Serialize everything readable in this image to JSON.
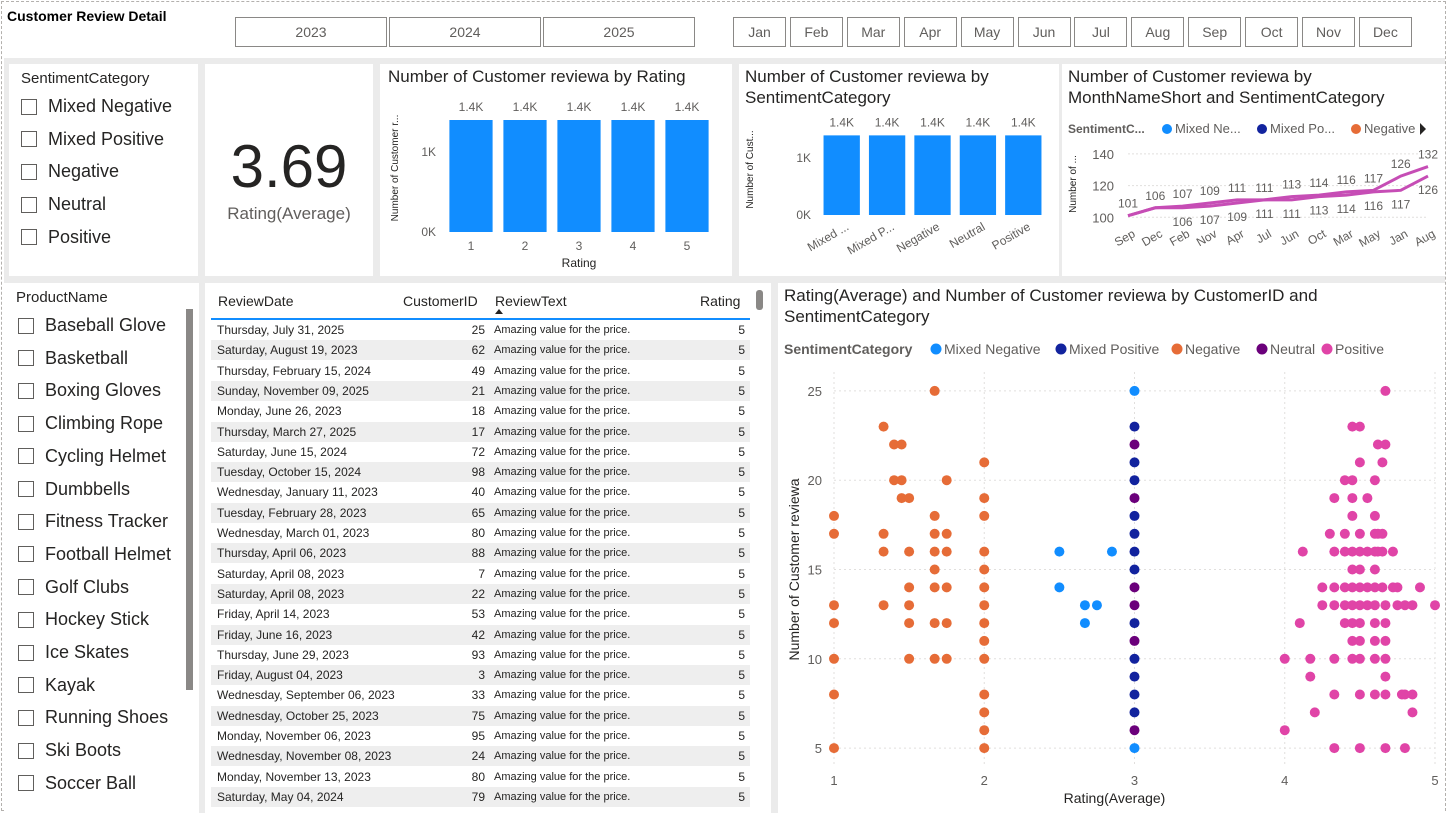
{
  "page_title": "Customer Review Detail",
  "years": [
    "2023",
    "2024",
    "2025"
  ],
  "months": [
    "Jan",
    "Feb",
    "Mar",
    "Apr",
    "May",
    "Jun",
    "Jul",
    "Aug",
    "Sep",
    "Oct",
    "Nov",
    "Dec"
  ],
  "sentiment_slicer": {
    "title": "SentimentCategory",
    "items": [
      "Mixed Negative",
      "Mixed Positive",
      "Negative",
      "Neutral",
      "Positive"
    ]
  },
  "product_slicer": {
    "title": "ProductName",
    "items": [
      "Baseball Glove",
      "Basketball",
      "Boxing Gloves",
      "Climbing Rope",
      "Cycling Helmet",
      "Dumbbells",
      "Fitness Tracker",
      "Football Helmet",
      "Golf Clubs",
      "Hockey Stick",
      "Ice Skates",
      "Kayak",
      "Running Shoes",
      "Ski Boots",
      "Soccer Ball"
    ]
  },
  "card": {
    "value": "3.69",
    "label": "Rating(Average)"
  },
  "colors": {
    "bar": "#118dff",
    "mixed_negative": "#118dff",
    "mixed_positive": "#12239e",
    "negative": "#e66c37",
    "neutral": "#6b007b",
    "positive": "#e044a7",
    "line": "#c64db5"
  },
  "table": {
    "columns": [
      "ReviewDate",
      "CustomerID",
      "ReviewText",
      "Rating"
    ],
    "rows": [
      [
        "Thursday, July 31, 2025",
        "25",
        "Amazing value for the price.",
        "5"
      ],
      [
        "Saturday, August 19, 2023",
        "62",
        "Amazing value for the price.",
        "5"
      ],
      [
        "Thursday, February 15, 2024",
        "49",
        "Amazing value for the price.",
        "5"
      ],
      [
        "Sunday, November 09, 2025",
        "21",
        "Amazing value for the price.",
        "5"
      ],
      [
        "Monday, June 26, 2023",
        "18",
        "Amazing value for the price.",
        "5"
      ],
      [
        "Thursday, March 27, 2025",
        "17",
        "Amazing value for the price.",
        "5"
      ],
      [
        "Saturday, June 15, 2024",
        "72",
        "Amazing value for the price.",
        "5"
      ],
      [
        "Tuesday, October 15, 2024",
        "98",
        "Amazing value for the price.",
        "5"
      ],
      [
        "Wednesday, January 11, 2023",
        "40",
        "Amazing value for the price.",
        "5"
      ],
      [
        "Tuesday, February 28, 2023",
        "65",
        "Amazing value for the price.",
        "5"
      ],
      [
        "Wednesday, March 01, 2023",
        "80",
        "Amazing value for the price.",
        "5"
      ],
      [
        "Thursday, April 06, 2023",
        "88",
        "Amazing value for the price.",
        "5"
      ],
      [
        "Saturday, April 08, 2023",
        "7",
        "Amazing value for the price.",
        "5"
      ],
      [
        "Saturday, April 08, 2023",
        "22",
        "Amazing value for the price.",
        "5"
      ],
      [
        "Friday, April 14, 2023",
        "53",
        "Amazing value for the price.",
        "5"
      ],
      [
        "Friday, June 16, 2023",
        "42",
        "Amazing value for the price.",
        "5"
      ],
      [
        "Thursday, June 29, 2023",
        "93",
        "Amazing value for the price.",
        "5"
      ],
      [
        "Friday, August 04, 2023",
        "3",
        "Amazing value for the price.",
        "5"
      ],
      [
        "Wednesday, September 06, 2023",
        "33",
        "Amazing value for the price.",
        "5"
      ],
      [
        "Wednesday, October 25, 2023",
        "75",
        "Amazing value for the price.",
        "5"
      ],
      [
        "Monday, November 06, 2023",
        "95",
        "Amazing value for the price.",
        "5"
      ],
      [
        "Wednesday, November 08, 2023",
        "24",
        "Amazing value for the price.",
        "5"
      ],
      [
        "Monday, November 13, 2023",
        "80",
        "Amazing value for the price.",
        "5"
      ],
      [
        "Saturday, May 04, 2024",
        "79",
        "Amazing value for the price.",
        "5"
      ]
    ]
  },
  "chart_data": [
    {
      "type": "bar",
      "title": "Number of Customer reviewa by Rating",
      "xlabel": "Rating",
      "ylabel": "Number of Customer r...",
      "categories": [
        "1",
        "2",
        "3",
        "4",
        "5"
      ],
      "values": [
        1400,
        1400,
        1400,
        1400,
        1400
      ],
      "data_labels": [
        "1.4K",
        "1.4K",
        "1.4K",
        "1.4K",
        "1.4K"
      ],
      "yticks": [
        "0K",
        "1K"
      ],
      "ylim": [
        0,
        1600
      ]
    },
    {
      "type": "bar",
      "title": "Number of Customer reviewa by SentimentCategory",
      "ylabel": "Number of Cust...",
      "categories": [
        "Mixed ...",
        "Mixed P...",
        "Negative",
        "Neutral",
        "Positive"
      ],
      "values": [
        1400,
        1400,
        1400,
        1400,
        1400
      ],
      "data_labels": [
        "1.4K",
        "1.4K",
        "1.4K",
        "1.4K",
        "1.4K"
      ],
      "yticks": [
        "0K",
        "1K"
      ],
      "ylim": [
        0,
        1600
      ]
    },
    {
      "type": "line",
      "title": "Number of Customer reviewa by MonthNameShort and SentimentCategory",
      "ylabel": "Number of ...",
      "legend_title": "SentimentC...",
      "legend": [
        "Mixed Ne...",
        "Mixed Po...",
        "Negative"
      ],
      "x": [
        "Sep",
        "Dec",
        "Feb",
        "Nov",
        "Apr",
        "Jul",
        "Jun",
        "Oct",
        "Mar",
        "May",
        "Jan",
        "Aug"
      ],
      "yticks": [
        "100",
        "120",
        "140"
      ],
      "ylim": [
        97,
        145
      ],
      "series": [
        {
          "values": [
            101,
            106,
            107,
            109,
            111,
            111,
            113,
            114,
            116,
            117,
            126,
            132
          ],
          "labels": [
            "101",
            "106",
            "107",
            "109",
            "111",
            "111",
            "113",
            "114",
            "116",
            "117",
            "126",
            "132"
          ]
        },
        {
          "values": [
            101,
            106,
            106,
            107,
            109,
            111,
            111,
            113,
            114,
            116,
            117,
            126
          ],
          "labels": [
            "",
            "",
            "106",
            "107",
            "109",
            "111",
            "111",
            "113",
            "114",
            "116",
            "117",
            "126"
          ]
        }
      ]
    },
    {
      "type": "scatter",
      "title": "Rating(Average) and Number of Customer reviewa by CustomerID and SentimentCategory",
      "xlabel": "Rating(Average)",
      "ylabel": "Number of Customer reviewa",
      "legend_title": "SentimentCategory",
      "legend": [
        "Mixed Negative",
        "Mixed Positive",
        "Negative",
        "Neutral",
        "Positive"
      ],
      "xlim": [
        1,
        5
      ],
      "ylim": [
        4.5,
        25.5
      ],
      "xticks": [
        "1",
        "2",
        "3",
        "4",
        "5"
      ],
      "yticks": [
        "5",
        "10",
        "15",
        "20",
        "25"
      ],
      "series": [
        {
          "name": "Negative",
          "color_key": "negative",
          "points": [
            [
              1,
              18
            ],
            [
              1,
              17
            ],
            [
              1,
              13
            ],
            [
              1,
              12
            ],
            [
              1,
              10
            ],
            [
              1,
              8
            ],
            [
              1,
              5
            ],
            [
              1.33,
              23
            ],
            [
              1.33,
              17
            ],
            [
              1.33,
              16
            ],
            [
              1.33,
              13
            ],
            [
              1.4,
              22
            ],
            [
              1.4,
              20
            ],
            [
              1.45,
              22
            ],
            [
              1.45,
              20
            ],
            [
              1.45,
              19
            ],
            [
              1.5,
              19
            ],
            [
              1.5,
              16
            ],
            [
              1.5,
              14
            ],
            [
              1.5,
              13
            ],
            [
              1.5,
              12
            ],
            [
              1.5,
              10
            ],
            [
              1.67,
              25
            ],
            [
              1.67,
              18
            ],
            [
              1.67,
              17
            ],
            [
              1.67,
              16
            ],
            [
              1.67,
              15
            ],
            [
              1.67,
              14
            ],
            [
              1.67,
              12
            ],
            [
              1.67,
              10
            ],
            [
              1.75,
              20
            ],
            [
              1.75,
              17
            ],
            [
              1.75,
              16
            ],
            [
              1.75,
              14
            ],
            [
              1.75,
              12
            ],
            [
              1.75,
              10
            ],
            [
              2,
              21
            ],
            [
              2,
              19
            ],
            [
              2,
              18
            ],
            [
              2,
              16
            ],
            [
              2,
              15
            ],
            [
              2,
              14
            ],
            [
              2,
              13
            ],
            [
              2,
              12
            ],
            [
              2,
              11
            ],
            [
              2,
              10
            ],
            [
              2,
              8
            ],
            [
              2,
              7
            ],
            [
              2,
              6
            ],
            [
              2,
              5
            ]
          ]
        },
        {
          "name": "Mixed Negative",
          "color_key": "mixed_negative",
          "points": [
            [
              2.5,
              16
            ],
            [
              2.5,
              14
            ],
            [
              2.67,
              13
            ],
            [
              2.67,
              12
            ],
            [
              2.75,
              13
            ],
            [
              2.85,
              16
            ],
            [
              3,
              25
            ],
            [
              3,
              5
            ]
          ]
        },
        {
          "name": "Mixed Positive",
          "color_key": "mixed_positive",
          "points": [
            [
              3,
              23
            ],
            [
              3,
              21
            ],
            [
              3,
              20
            ],
            [
              3,
              18
            ],
            [
              3,
              17
            ],
            [
              3,
              16
            ],
            [
              3,
              15
            ],
            [
              3,
              12
            ],
            [
              3,
              10
            ],
            [
              3,
              9
            ],
            [
              3,
              8
            ],
            [
              3,
              7
            ]
          ]
        },
        {
          "name": "Neutral",
          "color_key": "neutral",
          "points": [
            [
              3,
              22
            ],
            [
              3,
              19
            ],
            [
              3,
              14
            ],
            [
              3,
              13
            ],
            [
              3,
              11
            ],
            [
              3,
              6
            ]
          ]
        },
        {
          "name": "Positive",
          "color_key": "positive",
          "points": [
            [
              4,
              10
            ],
            [
              4,
              6
            ],
            [
              4.1,
              12
            ],
            [
              4.12,
              16
            ],
            [
              4.17,
              9
            ],
            [
              4.17,
              10
            ],
            [
              4.2,
              7
            ],
            [
              4.25,
              14
            ],
            [
              4.25,
              13
            ],
            [
              4.3,
              17
            ],
            [
              4.33,
              19
            ],
            [
              4.33,
              16
            ],
            [
              4.33,
              14
            ],
            [
              4.33,
              13
            ],
            [
              4.33,
              10
            ],
            [
              4.33,
              8
            ],
            [
              4.33,
              5
            ],
            [
              4.4,
              20
            ],
            [
              4.4,
              17
            ],
            [
              4.4,
              16
            ],
            [
              4.4,
              14
            ],
            [
              4.4,
              13
            ],
            [
              4.4,
              12
            ],
            [
              4.45,
              23
            ],
            [
              4.45,
              20
            ],
            [
              4.45,
              19
            ],
            [
              4.45,
              18
            ],
            [
              4.45,
              16
            ],
            [
              4.45,
              15
            ],
            [
              4.45,
              14
            ],
            [
              4.45,
              13
            ],
            [
              4.45,
              12
            ],
            [
              4.45,
              11
            ],
            [
              4.45,
              10
            ],
            [
              4.5,
              23
            ],
            [
              4.5,
              21
            ],
            [
              4.5,
              17
            ],
            [
              4.5,
              16
            ],
            [
              4.5,
              15
            ],
            [
              4.5,
              14
            ],
            [
              4.5,
              13
            ],
            [
              4.5,
              12
            ],
            [
              4.5,
              11
            ],
            [
              4.5,
              10
            ],
            [
              4.5,
              8
            ],
            [
              4.5,
              5
            ],
            [
              4.55,
              19
            ],
            [
              4.55,
              16
            ],
            [
              4.55,
              14
            ],
            [
              4.55,
              13
            ],
            [
              4.6,
              20
            ],
            [
              4.6,
              18
            ],
            [
              4.6,
              17
            ],
            [
              4.6,
              16
            ],
            [
              4.6,
              15
            ],
            [
              4.6,
              14
            ],
            [
              4.6,
              13
            ],
            [
              4.6,
              12
            ],
            [
              4.6,
              11
            ],
            [
              4.6,
              10
            ],
            [
              4.6,
              8
            ],
            [
              4.62,
              22
            ],
            [
              4.62,
              17
            ],
            [
              4.62,
              16
            ],
            [
              4.65,
              21
            ],
            [
              4.65,
              17
            ],
            [
              4.65,
              16
            ],
            [
              4.65,
              14
            ],
            [
              4.67,
              25
            ],
            [
              4.67,
              22
            ],
            [
              4.67,
              13
            ],
            [
              4.67,
              12
            ],
            [
              4.67,
              11
            ],
            [
              4.67,
              10
            ],
            [
              4.67,
              9
            ],
            [
              4.67,
              8
            ],
            [
              4.67,
              5
            ],
            [
              4.72,
              16
            ],
            [
              4.72,
              14
            ],
            [
              4.75,
              14
            ],
            [
              4.75,
              13
            ],
            [
              4.78,
              8
            ],
            [
              4.8,
              13
            ],
            [
              4.8,
              8
            ],
            [
              4.8,
              5
            ],
            [
              4.85,
              13
            ],
            [
              4.85,
              8
            ],
            [
              4.85,
              7
            ],
            [
              4.9,
              14
            ],
            [
              5,
              13
            ]
          ]
        }
      ]
    }
  ]
}
